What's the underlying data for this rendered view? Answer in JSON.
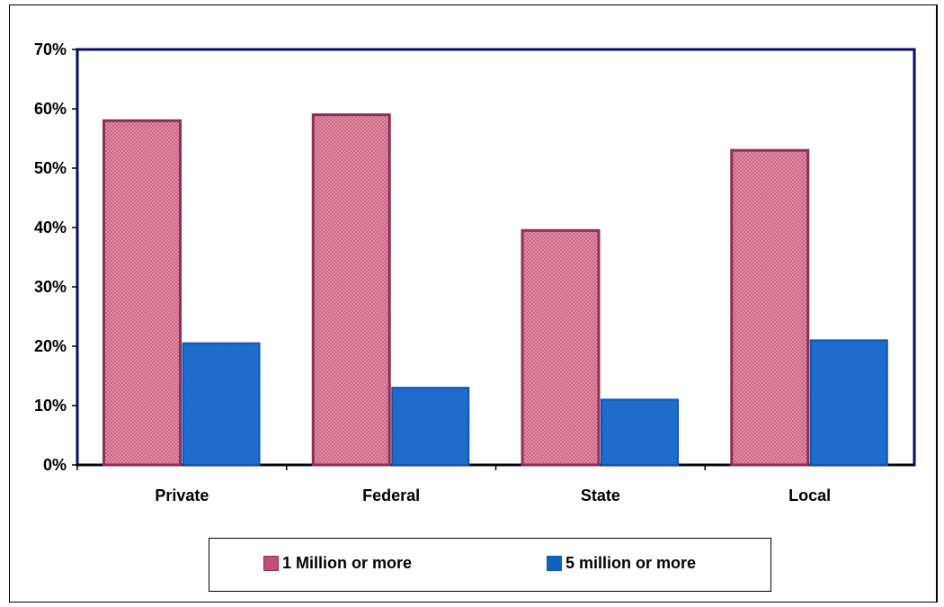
{
  "chart_data": {
    "type": "bar",
    "categories": [
      "Private",
      "Federal",
      "State",
      "Local"
    ],
    "series": [
      {
        "name": "1 Million or more",
        "values": [
          58,
          59,
          39.5,
          53
        ],
        "color": "#c0506e",
        "border": "#8e2f55"
      },
      {
        "name": "5 million or more",
        "values": [
          20.5,
          13,
          11,
          21
        ],
        "color": "#1060c0",
        "border": "#0d57b0"
      }
    ],
    "ylim": [
      0,
      70
    ],
    "yticks": [
      "0%",
      "10%",
      "20%",
      "30%",
      "40%",
      "50%",
      "60%",
      "70%"
    ],
    "ytick_values": [
      0,
      10,
      20,
      30,
      40,
      50,
      60,
      70
    ],
    "unit": "%",
    "plot_border_color": "#0a0a6e",
    "legend_position": "bottom"
  }
}
